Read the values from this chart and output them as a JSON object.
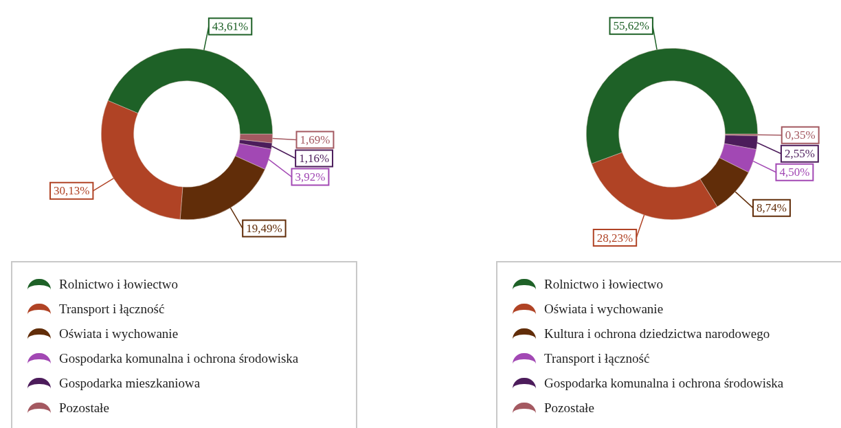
{
  "chart_data": [
    {
      "type": "donut",
      "categories": [
        "Rolnictwo i łowiectwo",
        "Transport i łączność",
        "Oświata i wychowanie",
        "Gospodarka komunalna i ochrona środowiska",
        "Gospodarka mieszkaniowa",
        "Pozostałe"
      ],
      "values": [
        43.61,
        30.13,
        19.49,
        3.92,
        1.16,
        1.69
      ],
      "value_labels": [
        "43,61%",
        "30,13%",
        "19,49%",
        "3,92%",
        "1,16%",
        "1,69%"
      ],
      "colors": [
        "#1e6127",
        "#b04325",
        "#612d09",
        "#a248b4",
        "#4c1c5b",
        "#a45961"
      ],
      "legend": "bottom"
    },
    {
      "type": "donut",
      "categories": [
        "Rolnictwo i łowiectwo",
        "Oświata i wychowanie",
        "Kultura i ochrona dziedzictwa narodowego",
        "Transport i łączność",
        "Gospodarka komunalna i ochrona środowiska",
        "Pozostałe"
      ],
      "values": [
        55.62,
        28.23,
        8.74,
        4.5,
        2.55,
        0.35
      ],
      "value_labels": [
        "55,62%",
        "28,23%",
        "8,74%",
        "4,50%",
        "2,55%",
        "0,35%"
      ],
      "colors": [
        "#1e6127",
        "#b04325",
        "#612d09",
        "#a248b4",
        "#4c1c5b",
        "#a45961"
      ],
      "legend": "bottom"
    }
  ]
}
